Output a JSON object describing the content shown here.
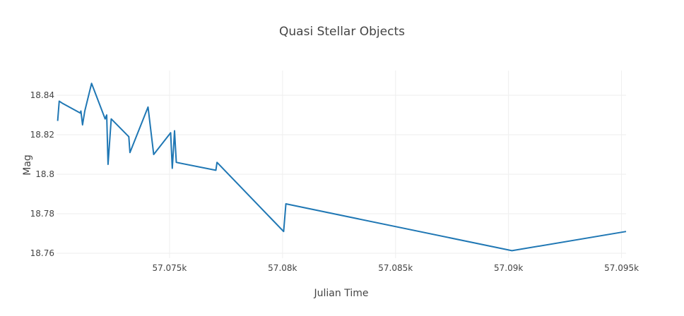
{
  "chart_data": {
    "type": "line",
    "title": "Quasi Stellar Objects",
    "xlabel": "Julian Time",
    "ylabel": "Mag",
    "xlim": [
      57070.0,
      57095.2
    ],
    "ylim": [
      18.7575,
      18.8525
    ],
    "x_ticks": [
      57075,
      57080,
      57085,
      57090,
      57095
    ],
    "x_tick_labels": [
      "57.075k",
      "57.08k",
      "57.085k",
      "57.09k",
      "57.095k"
    ],
    "y_ticks": [
      18.76,
      18.78,
      18.8,
      18.82,
      18.84
    ],
    "y_tick_labels": [
      "18.76",
      "18.78",
      "18.8",
      "18.82",
      "18.84"
    ],
    "grid": true,
    "series_color": "#1f77b4",
    "series": [
      {
        "x": [
          57070.05,
          57070.12,
          57070.25,
          57071.05,
          57071.08,
          57071.15,
          57071.25,
          57071.55,
          57072.15,
          57072.22,
          57072.28,
          57072.42,
          57073.2,
          57073.25,
          57074.05,
          57074.3,
          57075.05,
          57075.12,
          57075.17,
          57075.22,
          57075.3,
          57077.05,
          57077.1,
          57080.05,
          57080.15,
          57090.15,
          57095.2
        ],
        "y": [
          18.827,
          18.837,
          18.836,
          18.831,
          18.832,
          18.825,
          18.832,
          18.846,
          18.828,
          18.83,
          18.805,
          18.828,
          18.819,
          18.811,
          18.834,
          18.81,
          18.821,
          18.803,
          18.812,
          18.822,
          18.806,
          18.802,
          18.806,
          18.771,
          18.785,
          18.7613,
          18.771
        ]
      }
    ]
  }
}
